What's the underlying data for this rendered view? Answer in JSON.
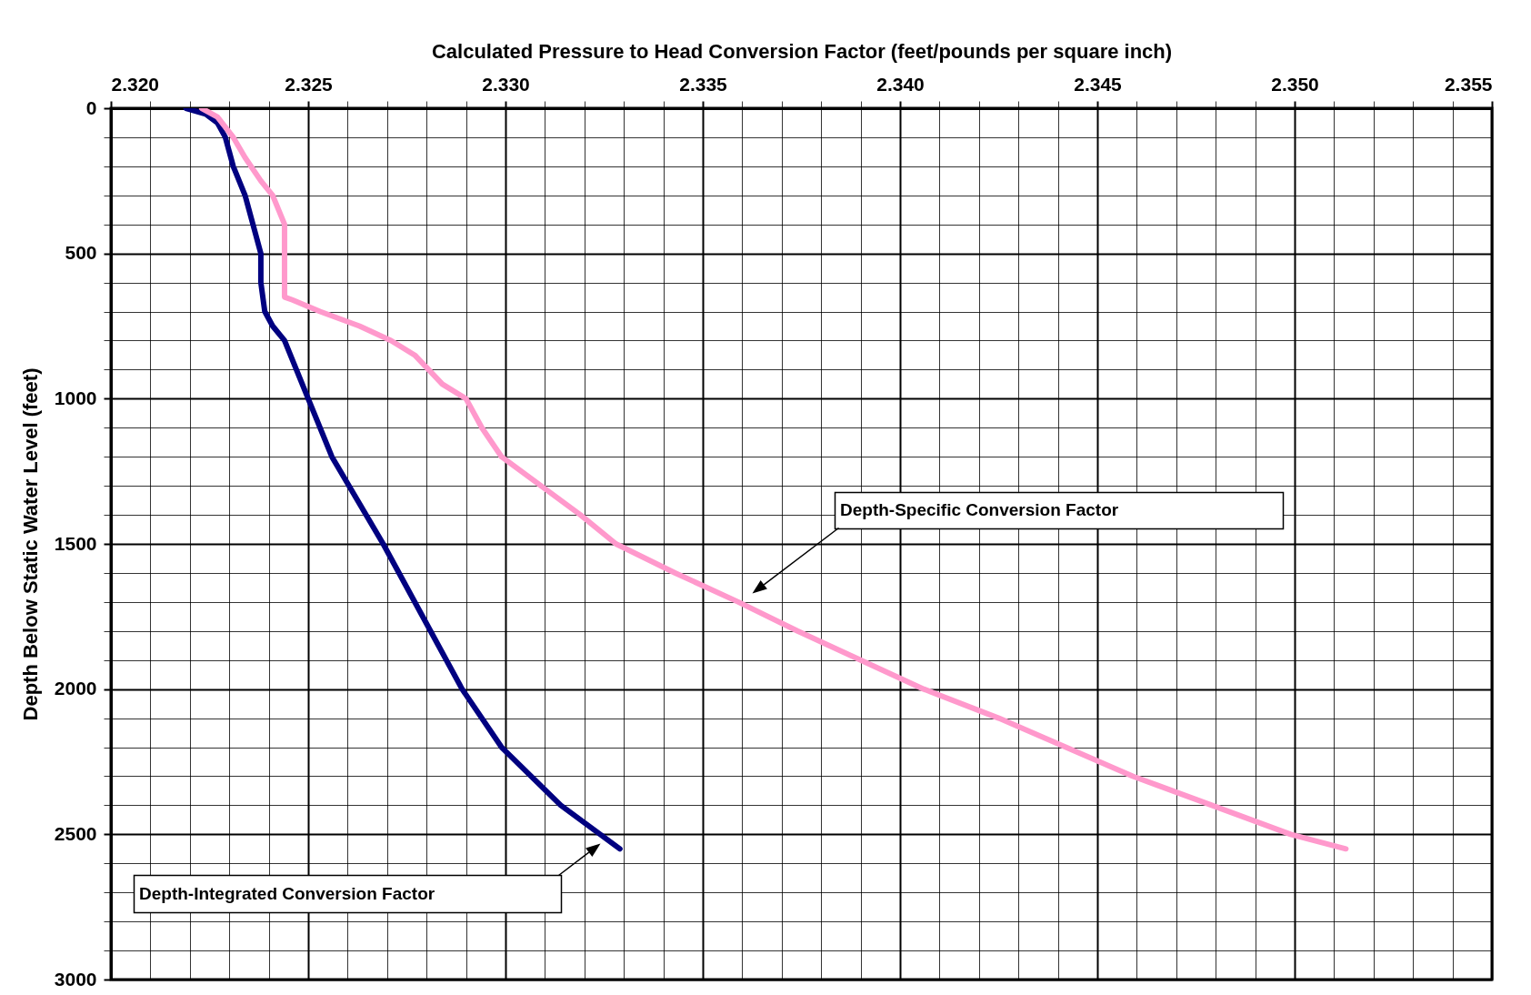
{
  "chart_data": {
    "type": "line",
    "xlabel": "Calculated Pressure to Head Conversion Factor (feet/pounds per square inch)",
    "ylabel": "Depth Below Static Water Level (feet)",
    "series": [
      {
        "color": "#000080",
        "x": [
          2.3219,
          2.3224,
          2.3227,
          2.3229,
          2.3231,
          2.3234,
          2.3236,
          2.3238,
          2.3238,
          2.3239,
          2.3241,
          2.3244,
          2.3247,
          2.325,
          2.3256,
          2.3269,
          2.3281,
          2.3289,
          2.3299,
          2.3314,
          2.3329
        ],
        "values": [
          0,
          20,
          50,
          100,
          200,
          300,
          400,
          500,
          600,
          700,
          750,
          800,
          900,
          1000,
          1200,
          1500,
          1800,
          2000,
          2200,
          2400,
          2550
        ]
      },
      {
        "color": "#ff99cc",
        "x": [
          2.3223,
          2.3227,
          2.3231,
          2.3234,
          2.3238,
          2.3241,
          2.3244,
          2.3244,
          2.3244,
          2.3246,
          2.3253,
          2.3263,
          2.3271,
          2.3277,
          2.3284,
          2.329,
          2.3294,
          2.3299,
          2.3309,
          2.3319,
          2.3328,
          2.3343,
          2.3359,
          2.3374,
          2.339,
          2.3406,
          2.3425,
          2.3442,
          2.3459,
          2.3479,
          2.3499,
          2.3513
        ],
        "values": [
          0,
          30,
          100,
          170,
          250,
          300,
          400,
          500,
          650,
          660,
          700,
          750,
          800,
          850,
          950,
          1000,
          1100,
          1200,
          1300,
          1400,
          1500,
          1600,
          1700,
          1800,
          1900,
          2000,
          2100,
          2200,
          2300,
          2400,
          2500,
          2550
        ]
      }
    ],
    "annotations": [
      "Depth-Specific Conversion Factor",
      "Depth-Integrated Conversion Factor"
    ],
    "xlim": [
      2.32,
      2.355
    ],
    "xticks": [
      {
        "value": 2.32,
        "label": "2.320"
      },
      {
        "value": 2.321,
        "label": null
      },
      {
        "value": 2.322,
        "label": null
      },
      {
        "value": 2.323,
        "label": null
      },
      {
        "value": 2.324,
        "label": null
      },
      {
        "value": 2.325,
        "label": "2.325"
      },
      {
        "value": 2.326,
        "label": null
      },
      {
        "value": 2.327,
        "label": null
      },
      {
        "value": 2.328,
        "label": null
      },
      {
        "value": 2.329,
        "label": null
      },
      {
        "value": 2.33,
        "label": "2.330"
      },
      {
        "value": 2.331,
        "label": null
      },
      {
        "value": 2.332,
        "label": null
      },
      {
        "value": 2.333,
        "label": null
      },
      {
        "value": 2.334,
        "label": null
      },
      {
        "value": 2.335,
        "label": "2.335"
      },
      {
        "value": 2.336,
        "label": null
      },
      {
        "value": 2.337,
        "label": null
      },
      {
        "value": 2.338,
        "label": null
      },
      {
        "value": 2.339,
        "label": null
      },
      {
        "value": 2.34,
        "label": "2.340"
      },
      {
        "value": 2.341,
        "label": null
      },
      {
        "value": 2.342,
        "label": null
      },
      {
        "value": 2.343,
        "label": null
      },
      {
        "value": 2.344,
        "label": null
      },
      {
        "value": 2.345,
        "label": "2.345"
      },
      {
        "value": 2.346,
        "label": null
      },
      {
        "value": 2.347,
        "label": null
      },
      {
        "value": 2.348,
        "label": null
      },
      {
        "value": 2.349,
        "label": null
      },
      {
        "value": 2.35,
        "label": "2.350"
      },
      {
        "value": 2.351,
        "label": null
      },
      {
        "value": 2.352,
        "label": null
      },
      {
        "value": 2.353,
        "label": null
      },
      {
        "value": 2.354,
        "label": null
      },
      {
        "value": 2.355,
        "label": "2.355"
      }
    ],
    "ylim": [
      3000,
      0
    ],
    "yticks": [
      0,
      {
        "value": 100,
        "label": null
      },
      {
        "value": 200,
        "label": null
      },
      {
        "value": 300,
        "label": null
      },
      {
        "value": 400,
        "label": null
      },
      500,
      {
        "value": 600,
        "label": null
      },
      {
        "value": 700,
        "label": null
      },
      {
        "value": 800,
        "label": null
      },
      {
        "value": 900,
        "label": null
      },
      1000,
      {
        "value": 1100,
        "label": null
      },
      {
        "value": 1200,
        "label": null
      },
      {
        "value": 1300,
        "label": null
      },
      {
        "value": 1400,
        "label": null
      },
      1500,
      {
        "value": 1600,
        "label": null
      },
      {
        "value": 1700,
        "label": null
      },
      {
        "value": 1800,
        "label": null
      },
      {
        "value": 1900,
        "label": null
      },
      2000,
      {
        "value": 2100,
        "label": null
      },
      {
        "value": 2200,
        "label": null
      },
      {
        "value": 2300,
        "label": null
      },
      {
        "value": 2400,
        "label": null
      },
      2500,
      {
        "value": 2600,
        "label": null
      },
      {
        "value": 2700,
        "label": null
      },
      {
        "value": 2800,
        "label": null
      },
      {
        "value": 2900,
        "label": null
      },
      3000
    ],
    "grid": true,
    "line_style": "solid",
    "marker": "none"
  }
}
